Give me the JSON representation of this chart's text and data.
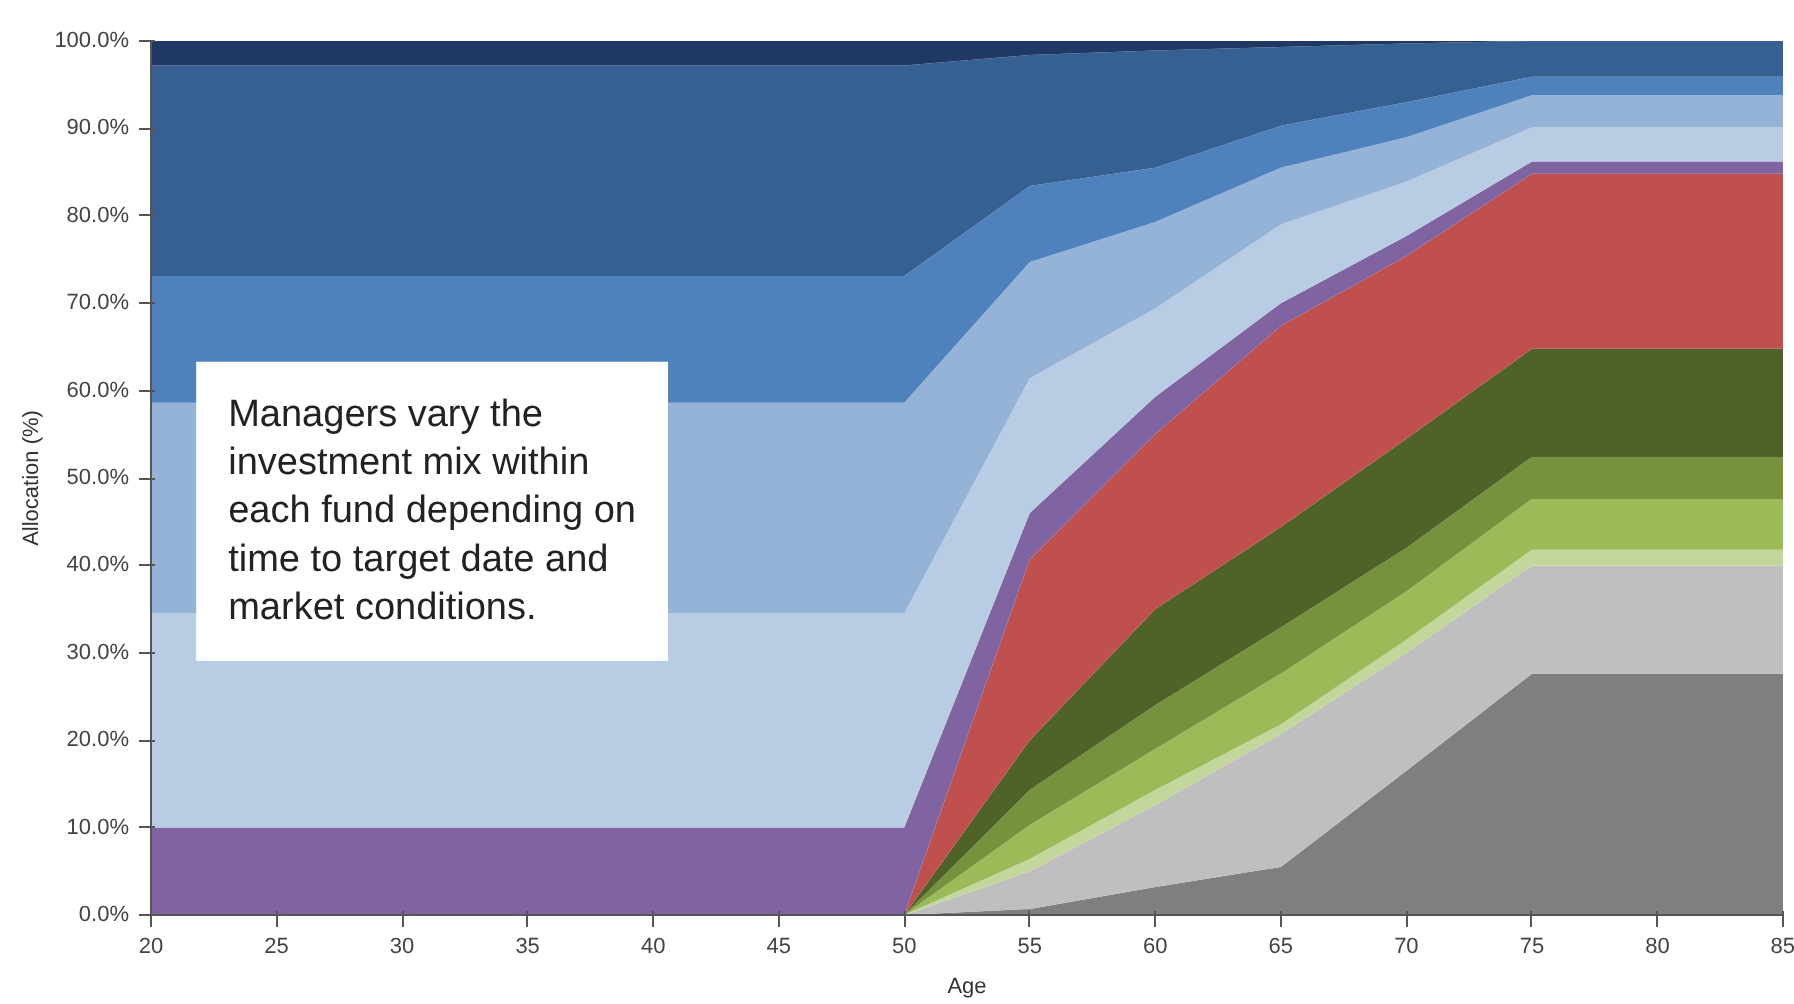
{
  "chart_data": {
    "type": "area",
    "stacked": true,
    "xlabel": "Age",
    "ylabel": "Allocation (%)",
    "x": [
      20,
      50,
      55,
      60,
      65,
      70,
      75,
      80,
      85
    ],
    "xlim": [
      20,
      85
    ],
    "xticks": [
      20,
      25,
      30,
      35,
      40,
      45,
      50,
      55,
      60,
      65,
      70,
      75,
      80,
      85
    ],
    "ylim": [
      0,
      100
    ],
    "yticks": [
      {
        "value": 0,
        "label": "0.0%"
      },
      {
        "value": 10,
        "label": "10.0%"
      },
      {
        "value": 20,
        "label": "20.0%"
      },
      {
        "value": 30,
        "label": "30.0%"
      },
      {
        "value": 40,
        "label": "40.0%"
      },
      {
        "value": 50,
        "label": "50.0%"
      },
      {
        "value": 60,
        "label": "60.0%"
      },
      {
        "value": 70,
        "label": "70.0%"
      },
      {
        "value": 80,
        "label": "80.0%"
      },
      {
        "value": 90,
        "label": "90.0%"
      },
      {
        "value": 100,
        "label": "100.0%"
      }
    ],
    "annotations": [
      "Managers vary the\ninvestment mix within\neach fund depending on\ntime to target date and\nmarket conditions."
    ],
    "series": [
      {
        "color": "#7f7f7f",
        "values": [
          0,
          0,
          0.7,
          3.2,
          5.5,
          16.5,
          27.6,
          27.6,
          27.6
        ]
      },
      {
        "color": "#bfbfbf",
        "values": [
          0,
          0,
          4.3,
          9.4,
          15.2,
          13.5,
          12.4,
          12.4,
          12.4
        ]
      },
      {
        "color": "#c3d69b",
        "values": [
          0,
          0,
          1.4,
          1.7,
          1.1,
          1.5,
          1.8,
          1.8,
          1.8
        ]
      },
      {
        "color": "#9bbb59",
        "values": [
          0,
          0,
          3.9,
          4.7,
          5.8,
          5.5,
          5.8,
          5.8,
          5.8
        ]
      },
      {
        "color": "#76923c",
        "values": [
          0,
          0,
          4,
          5,
          5.3,
          5,
          4.8,
          4.8,
          4.8
        ]
      },
      {
        "color": "#4f6228",
        "values": [
          0,
          0,
          5.7,
          11,
          11.5,
          12.5,
          12.4,
          12.4,
          12.4
        ]
      },
      {
        "color": "#c0504d",
        "values": [
          0,
          0,
          20.7,
          20,
          23,
          20.9,
          20,
          20,
          20
        ]
      },
      {
        "color": "#8064a2",
        "values": [
          10,
          10,
          5.3,
          4.3,
          2.6,
          2.3,
          1.4,
          1.4,
          1.4
        ]
      },
      {
        "color": "#b8cce4",
        "values": [
          24.5,
          24.5,
          15.4,
          10.1,
          9,
          6.2,
          3.9,
          3.9,
          3.9
        ]
      },
      {
        "color": "#95b3d7",
        "values": [
          24.1,
          24.1,
          13.3,
          9.9,
          6.5,
          5.1,
          3.7,
          3.7,
          3.7
        ]
      },
      {
        "color": "#4f81bd",
        "values": [
          14.5,
          14.5,
          8.7,
          6.2,
          4.8,
          4,
          2.1,
          2.1,
          2.1
        ]
      },
      {
        "color": "#366092",
        "values": [
          24.1,
          24.1,
          15,
          13.4,
          9,
          6.7,
          4.1,
          4.1,
          4.1
        ]
      },
      {
        "color": "#1f3864",
        "values": [
          2.8,
          2.8,
          1.6,
          1.1,
          0.7,
          0.3,
          0,
          0,
          0
        ]
      }
    ]
  }
}
